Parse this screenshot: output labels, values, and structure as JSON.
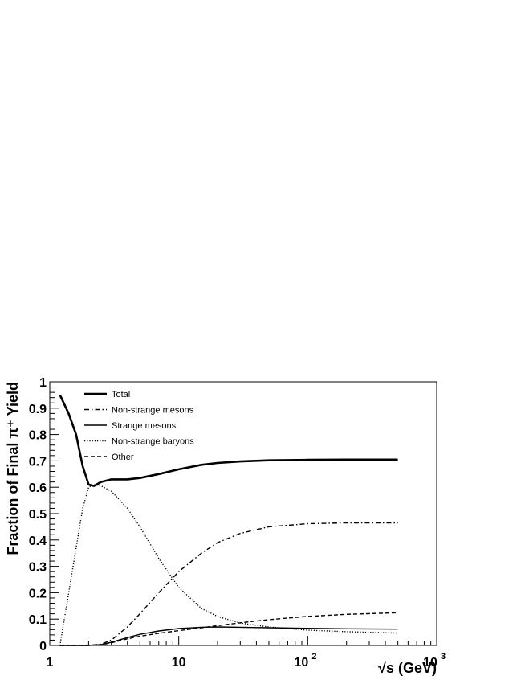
{
  "chart_data": {
    "type": "line",
    "xlabel": "√s (GeV)",
    "ylabel": "Fraction of Final π⁺ Yield",
    "xscale": "log",
    "xlim": [
      1,
      1000
    ],
    "ylim": [
      0,
      1
    ],
    "x_tick_labels": [
      "1",
      "10",
      "10",
      "10"
    ],
    "x_tick_exponents": [
      "",
      "",
      "2",
      "3"
    ],
    "y_tick_labels": [
      "0",
      "0.1",
      "0.2",
      "0.3",
      "0.4",
      "0.5",
      "0.6",
      "0.7",
      "0.8",
      "0.9",
      "1"
    ],
    "grid": false,
    "legend_position": "top-left",
    "series": [
      {
        "name": "Total",
        "style": "solid-thick",
        "x": [
          1.2,
          1.4,
          1.6,
          1.8,
          2.0,
          2.2,
          2.5,
          3.0,
          4.0,
          5.0,
          7.0,
          10,
          15,
          20,
          30,
          50,
          100,
          200,
          500
        ],
        "y": [
          0.95,
          0.88,
          0.8,
          0.68,
          0.61,
          0.605,
          0.62,
          0.63,
          0.63,
          0.635,
          0.65,
          0.668,
          0.685,
          0.692,
          0.698,
          0.702,
          0.704,
          0.705,
          0.705
        ]
      },
      {
        "name": "Non-strange mesons",
        "style": "dash-dot",
        "x": [
          1.2,
          2.0,
          2.5,
          3.0,
          4.0,
          5.0,
          7.0,
          10,
          15,
          20,
          30,
          50,
          100,
          200,
          500
        ],
        "y": [
          0.0,
          0.0,
          0.005,
          0.02,
          0.07,
          0.12,
          0.2,
          0.28,
          0.35,
          0.39,
          0.425,
          0.45,
          0.462,
          0.465,
          0.465
        ]
      },
      {
        "name": "Strange mesons",
        "style": "solid",
        "x": [
          1.2,
          2.0,
          2.5,
          3.0,
          4.0,
          5.0,
          7.0,
          10,
          15,
          20,
          30,
          50,
          100,
          200,
          500
        ],
        "y": [
          0.0,
          0.0,
          0.003,
          0.012,
          0.03,
          0.042,
          0.055,
          0.064,
          0.069,
          0.07,
          0.069,
          0.067,
          0.065,
          0.063,
          0.062
        ]
      },
      {
        "name": "Non-strange baryons",
        "style": "dotted",
        "x": [
          1.2,
          1.8,
          2.0,
          2.2,
          2.5,
          3.0,
          4.0,
          5.0,
          7.0,
          10,
          15,
          20,
          30,
          50,
          100,
          200,
          500
        ],
        "y": [
          0.0,
          0.52,
          0.6,
          0.61,
          0.605,
          0.585,
          0.52,
          0.45,
          0.33,
          0.22,
          0.14,
          0.11,
          0.085,
          0.07,
          0.058,
          0.052,
          0.047
        ]
      },
      {
        "name": "Other",
        "style": "dashed",
        "x": [
          1.2,
          2.0,
          2.5,
          3.0,
          4.0,
          5.0,
          7.0,
          10,
          15,
          20,
          30,
          50,
          100,
          200,
          500
        ],
        "y": [
          0.0,
          0.0,
          0.002,
          0.01,
          0.025,
          0.035,
          0.046,
          0.056,
          0.067,
          0.075,
          0.086,
          0.098,
          0.11,
          0.118,
          0.124
        ]
      }
    ]
  }
}
